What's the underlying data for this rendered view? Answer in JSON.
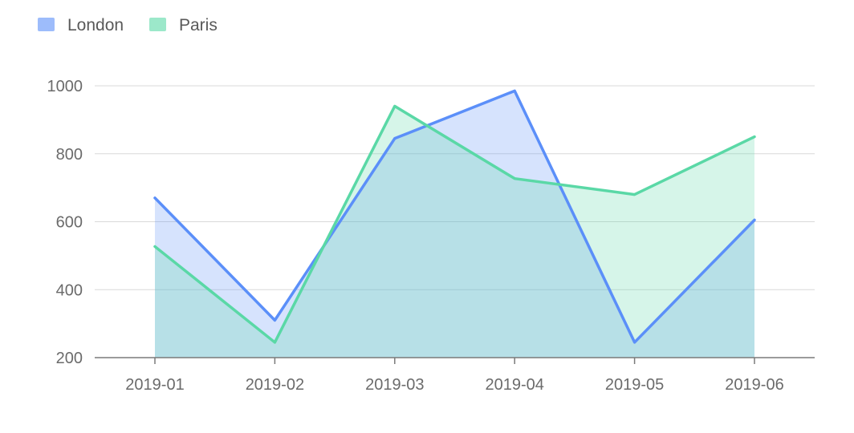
{
  "chart_data": {
    "type": "area",
    "categories": [
      "2019-01",
      "2019-02",
      "2019-03",
      "2019-04",
      "2019-05",
      "2019-06"
    ],
    "series": [
      {
        "name": "London",
        "values": [
          670,
          310,
          845,
          985,
          245,
          605
        ],
        "color": "#5b8ff9",
        "fill": "#5b8ff9"
      },
      {
        "name": "Paris",
        "values": [
          527,
          245,
          940,
          727,
          680,
          850
        ],
        "color": "#5ad8a6",
        "fill": "#5ad8a6"
      }
    ],
    "yticks": [
      200,
      400,
      600,
      800,
      1000
    ],
    "ylim": [
      200,
      1000
    ],
    "grid": true,
    "legend_position": "top-left"
  }
}
